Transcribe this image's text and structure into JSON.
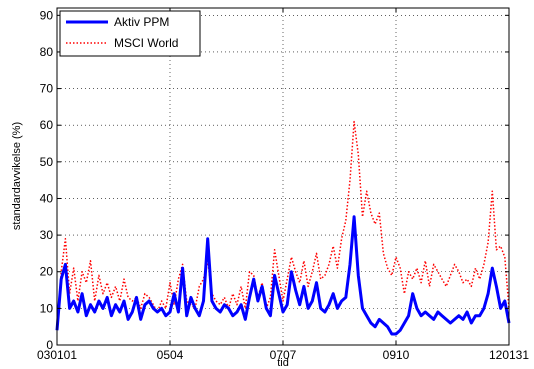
{
  "chart_data": {
    "type": "line",
    "title": "",
    "xlabel": "tid",
    "ylabel": "standardavvikelse (%)",
    "ylim": [
      0,
      92
    ],
    "yticks": [
      0,
      10,
      20,
      30,
      40,
      50,
      60,
      70,
      80,
      90
    ],
    "xticks": [
      {
        "label": "030101",
        "x": 0
      },
      {
        "label": "0504",
        "x": 27
      },
      {
        "label": "0707",
        "x": 54
      },
      {
        "label": "0910",
        "x": 81
      },
      {
        "label": "120131",
        "x": 108
      }
    ],
    "xlim": [
      0,
      108
    ],
    "grid": true,
    "legend_position": "top-left",
    "series": [
      {
        "name": "Aktiv PPM",
        "color": "#0000ff",
        "style": "solid",
        "x": [
          0,
          1,
          2,
          3,
          4,
          5,
          6,
          7,
          8,
          9,
          10,
          11,
          12,
          13,
          14,
          15,
          16,
          17,
          18,
          19,
          20,
          21,
          22,
          23,
          24,
          25,
          26,
          27,
          28,
          29,
          30,
          31,
          32,
          33,
          34,
          35,
          36,
          37,
          38,
          39,
          40,
          41,
          42,
          43,
          44,
          45,
          46,
          47,
          48,
          49,
          50,
          51,
          52,
          53,
          54,
          55,
          56,
          57,
          58,
          59,
          60,
          61,
          62,
          63,
          64,
          65,
          66,
          67,
          68,
          69,
          70,
          71,
          72,
          73,
          74,
          75,
          76,
          77,
          78,
          79,
          80,
          81,
          82,
          83,
          84,
          85,
          86,
          87,
          88,
          89,
          90,
          91,
          92,
          93,
          94,
          95,
          96,
          97,
          98,
          99,
          100,
          101,
          102,
          103,
          104,
          105,
          106,
          107,
          108
        ],
        "y": [
          4,
          18,
          22,
          10,
          12,
          9,
          14,
          8,
          11,
          9,
          12,
          10,
          13,
          8,
          11,
          9,
          12,
          7,
          9,
          13,
          7,
          11,
          12,
          10,
          9,
          10,
          8,
          9,
          14,
          9,
          21,
          8,
          13,
          10,
          8,
          12,
          29,
          12,
          10,
          9,
          11,
          10,
          8,
          9,
          11,
          7,
          13,
          18,
          12,
          16,
          10,
          8,
          19,
          14,
          9,
          11,
          20,
          15,
          11,
          16,
          10,
          12,
          17,
          10,
          9,
          11,
          14,
          10,
          12,
          13,
          22,
          35,
          19,
          10,
          8,
          6,
          5,
          7,
          6,
          5,
          3,
          3,
          4,
          6,
          8,
          14,
          10,
          8,
          9,
          8,
          7,
          9,
          8,
          7,
          6,
          7,
          8,
          7,
          9,
          6,
          8,
          8,
          10,
          14,
          21,
          16,
          10,
          12,
          6
        ]
      },
      {
        "name": "MSCI World",
        "color": "#ff0000",
        "style": "dotted",
        "x": [
          0,
          1,
          2,
          3,
          4,
          5,
          6,
          7,
          8,
          9,
          10,
          11,
          12,
          13,
          14,
          15,
          16,
          17,
          18,
          19,
          20,
          21,
          22,
          23,
          24,
          25,
          26,
          27,
          28,
          29,
          30,
          31,
          32,
          33,
          34,
          35,
          36,
          37,
          38,
          39,
          40,
          41,
          42,
          43,
          44,
          45,
          46,
          47,
          48,
          49,
          50,
          51,
          52,
          53,
          54,
          55,
          56,
          57,
          58,
          59,
          60,
          61,
          62,
          63,
          64,
          65,
          66,
          67,
          68,
          69,
          70,
          71,
          72,
          73,
          74,
          75,
          76,
          77,
          78,
          79,
          80,
          81,
          82,
          83,
          84,
          85,
          86,
          87,
          88,
          89,
          90,
          91,
          92,
          93,
          94,
          95,
          96,
          97,
          98,
          99,
          100,
          101,
          102,
          103,
          104,
          105,
          106,
          107,
          108
        ],
        "y": [
          5,
          20,
          29,
          14,
          21,
          12,
          20,
          17,
          23,
          12,
          19,
          14,
          17,
          13,
          16,
          12,
          18,
          13,
          12,
          13,
          10,
          14,
          13,
          11,
          9,
          12,
          10,
          17,
          11,
          18,
          22,
          12,
          11,
          10,
          16,
          18,
          23,
          14,
          12,
          11,
          13,
          10,
          14,
          11,
          16,
          10,
          20,
          19,
          13,
          17,
          10,
          13,
          26,
          19,
          12,
          18,
          24,
          20,
          17,
          23,
          16,
          20,
          25,
          18,
          19,
          22,
          27,
          21,
          29,
          34,
          45,
          61,
          52,
          35,
          42,
          36,
          33,
          36,
          25,
          21,
          19,
          24,
          21,
          14,
          20,
          18,
          21,
          17,
          23,
          16,
          22,
          20,
          18,
          16,
          19,
          22,
          20,
          17,
          18,
          16,
          21,
          18,
          22,
          28,
          42,
          26,
          27,
          24,
          10
        ]
      }
    ]
  }
}
